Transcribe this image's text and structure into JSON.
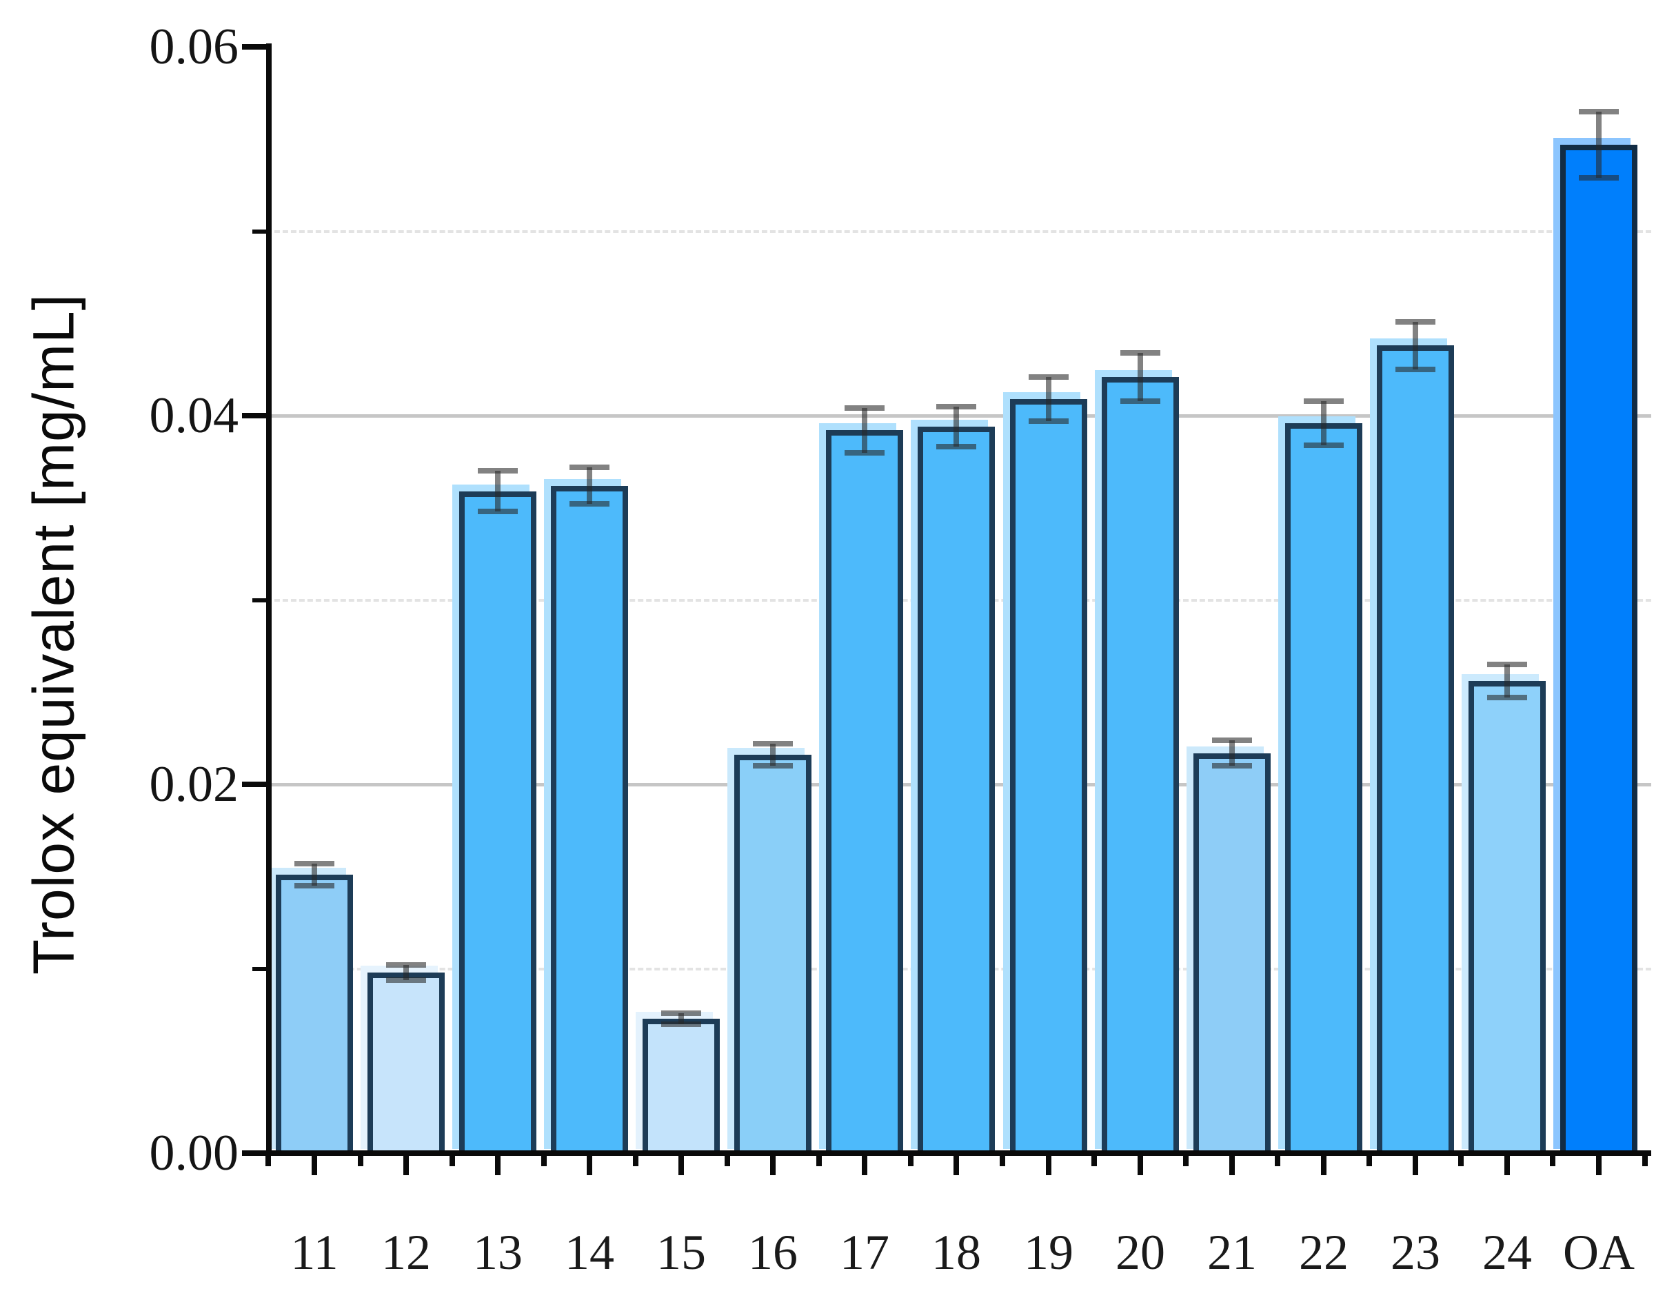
{
  "chart_data": {
    "type": "bar",
    "title": "",
    "ylabel": "Trolox equivalent [mg/mL]",
    "categories": [
      "11",
      "12",
      "13",
      "14",
      "15",
      "16",
      "17",
      "18",
      "19",
      "20",
      "21",
      "22",
      "23",
      "24",
      "OA"
    ],
    "series": [
      {
        "name": "Trolox equivalent",
        "values": [
          0.0151,
          0.0098,
          0.0359,
          0.0362,
          0.0073,
          0.0216,
          0.0392,
          0.0394,
          0.0409,
          0.0421,
          0.0217,
          0.0396,
          0.0438,
          0.0256,
          0.0547
        ],
        "errors": [
          0.0006,
          0.0004,
          0.0011,
          0.001,
          0.0003,
          0.0006,
          0.0012,
          0.0011,
          0.0012,
          0.0013,
          0.0007,
          0.0012,
          0.0013,
          0.0009,
          0.0018
        ]
      }
    ],
    "bar_fill_colors": [
      "#8ECDF7",
      "#C7E4FB",
      "#4DBAFB",
      "#4DBAFB",
      "#C3E3FB",
      "#8ACFF8",
      "#4DBAFB",
      "#4DBAFB",
      "#4DBAFB",
      "#4DBAFB",
      "#8ECDF7",
      "#4DBAFB",
      "#4DBAFB",
      "#8ED1FA",
      "#007FFC"
    ],
    "bar_border_colors": [
      "#1D3C57",
      "#1D3C57",
      "#1D3C57",
      "#1D3C57",
      "#1D3C57",
      "#1D3C57",
      "#1D3C57",
      "#1D3C57",
      "#1D3C57",
      "#1D3C57",
      "#1D3C57",
      "#1D3C57",
      "#1D3C57",
      "#1D3C57",
      "#122C44"
    ],
    "error_bar_color": "rgba(40,40,40,0.58)",
    "axis_color": "#0A0A0A",
    "tick_label_color": "#141414",
    "gridline_major_color": "#C6C6C6",
    "gridline_minor_color": "#E3E3E3",
    "ylim": [
      0,
      0.06
    ],
    "yticks": [
      "0.00",
      "0.02",
      "0.04",
      "0.06"
    ],
    "ytick_values": [
      0,
      0.02,
      0.04,
      0.06
    ],
    "minor_ytick_values": [
      0.01,
      0.03,
      0.05
    ],
    "grid": {
      "major_style": "solid",
      "minor_style": "dashed"
    },
    "legend": null
  }
}
